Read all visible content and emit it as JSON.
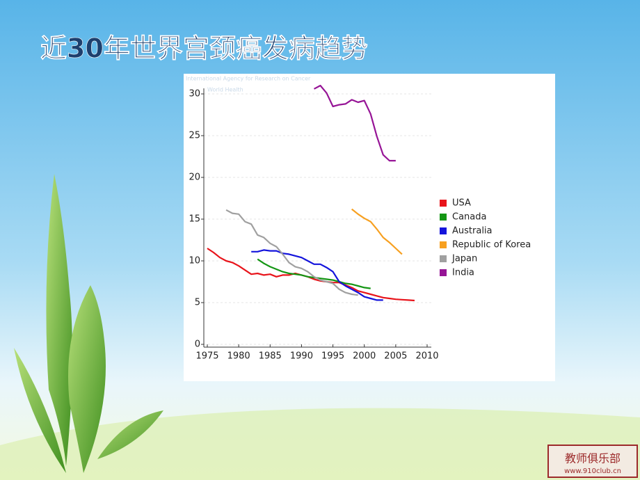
{
  "title": "近30年世界宫颈癌发病趋势",
  "chart_data": {
    "type": "line",
    "annotations": [
      "International Agency for Research on Cancer",
      "World Health"
    ],
    "xlim": [
      1975,
      2010
    ],
    "xticks": [
      1975,
      1980,
      1985,
      1990,
      1995,
      2000,
      2005,
      2010
    ],
    "ylim": [
      0,
      30
    ],
    "yticks": [
      0,
      5,
      10,
      15,
      20,
      25,
      30
    ],
    "grid": true,
    "legend": "right",
    "series": [
      {
        "name": "USA",
        "color": "#e8141b",
        "x": [
          1975,
          1976,
          1977,
          1978,
          1979,
          1980,
          1981,
          1982,
          1983,
          1984,
          1985,
          1986,
          1987,
          1988,
          1989,
          1990,
          1991,
          1992,
          1993,
          1994,
          1995,
          1996,
          1997,
          1998,
          1999,
          2000,
          2001,
          2002,
          2003,
          2004,
          2005,
          2006,
          2007,
          2008
        ],
        "values": [
          11.5,
          11.0,
          10.4,
          10.0,
          9.8,
          9.4,
          8.9,
          8.4,
          8.5,
          8.3,
          8.4,
          8.1,
          8.3,
          8.3,
          8.5,
          8.3,
          8.1,
          7.8,
          7.6,
          7.5,
          7.4,
          7.4,
          7.1,
          6.8,
          6.4,
          6.2,
          6.0,
          5.8,
          5.6,
          5.5,
          5.4,
          5.35,
          5.3,
          5.25
        ]
      },
      {
        "name": "Canada",
        "color": "#149614",
        "x": [
          1983,
          1984,
          1985,
          1986,
          1987,
          1988,
          1989,
          1990,
          1991,
          1992,
          1993,
          1994,
          1995,
          1996,
          1997,
          1998,
          1999,
          2000,
          2001
        ],
        "values": [
          10.2,
          9.7,
          9.3,
          9.0,
          8.7,
          8.5,
          8.4,
          8.3,
          8.1,
          8.0,
          7.9,
          7.8,
          7.7,
          7.5,
          7.3,
          7.2,
          7.0,
          6.8,
          6.7
        ]
      },
      {
        "name": "Australia",
        "color": "#1414dc",
        "x": [
          1982,
          1983,
          1984,
          1985,
          1986,
          1987,
          1988,
          1989,
          1990,
          1991,
          1992,
          1993,
          1994,
          1995,
          1996,
          1997,
          1998,
          1999,
          2000,
          2001,
          2002,
          2003
        ],
        "values": [
          11.1,
          11.1,
          11.3,
          11.2,
          11.2,
          10.9,
          10.8,
          10.6,
          10.4,
          10.0,
          9.6,
          9.6,
          9.2,
          8.7,
          7.5,
          7.0,
          6.6,
          6.2,
          5.7,
          5.5,
          5.3,
          5.3
        ]
      },
      {
        "name": "Republic of Korea",
        "color": "#f7a020",
        "x": [
          1998,
          1999,
          2000,
          2001,
          2002,
          2003,
          2004,
          2005,
          2006
        ],
        "values": [
          16.2,
          15.6,
          15.1,
          14.7,
          13.8,
          12.8,
          12.2,
          11.5,
          10.8
        ]
      },
      {
        "name": "Japan",
        "color": "#a0a0a0",
        "x": [
          1978,
          1979,
          1980,
          1981,
          1982,
          1983,
          1984,
          1985,
          1986,
          1987,
          1988,
          1989,
          1990,
          1991,
          1992,
          1993,
          1994,
          1995,
          1996,
          1997,
          1998,
          1999
        ],
        "values": [
          16.1,
          15.7,
          15.6,
          14.7,
          14.4,
          13.1,
          12.8,
          12.1,
          11.7,
          10.8,
          9.8,
          9.3,
          9.1,
          8.7,
          8.1,
          7.7,
          7.5,
          7.3,
          6.6,
          6.2,
          6.0,
          5.9
        ]
      },
      {
        "name": "India",
        "color": "#961496",
        "x": [
          1992,
          1993,
          1994,
          1995,
          1996,
          1997,
          1998,
          1999,
          2000,
          2001,
          2002,
          2003,
          2004,
          2005
        ],
        "values": [
          30.6,
          31.0,
          30.1,
          28.5,
          28.7,
          28.8,
          29.3,
          29.0,
          29.2,
          27.6,
          24.9,
          22.7,
          22.0,
          22.0
        ]
      }
    ]
  },
  "watermark": {
    "name": "教师俱乐部",
    "url": "www.910club.cn"
  }
}
